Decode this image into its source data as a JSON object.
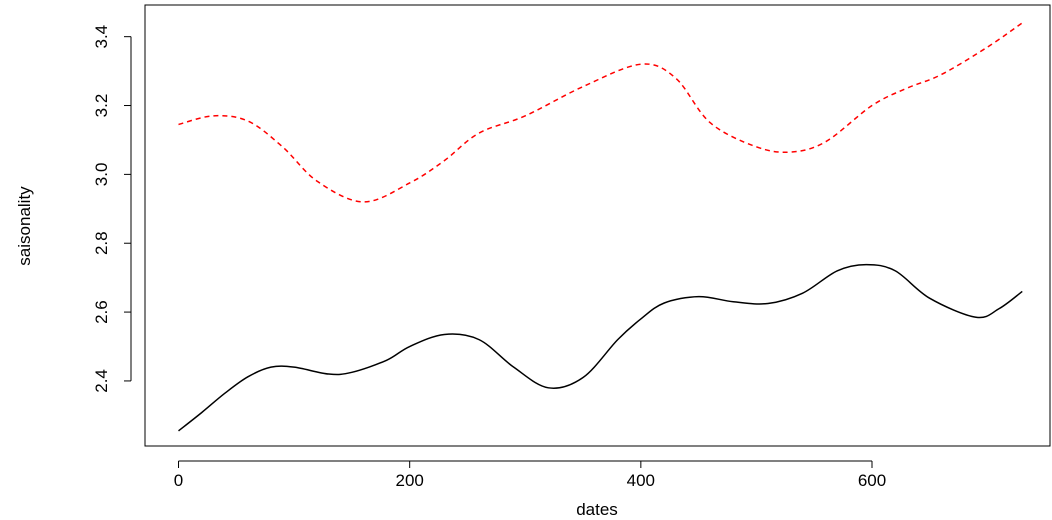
{
  "chart_data": {
    "type": "line",
    "title": "",
    "xlabel": "dates",
    "ylabel": "saisonality",
    "xlim": [
      -29,
      754
    ],
    "ylim": [
      2.211,
      3.492
    ],
    "x_ticks": [
      0,
      200,
      400,
      600
    ],
    "x_tick_labels": [
      "0",
      "200",
      "400",
      "600"
    ],
    "y_ticks": [
      2.4,
      2.6,
      2.8,
      3.0,
      3.2,
      3.4
    ],
    "y_tick_labels": [
      "2.4",
      "2.6",
      "2.8",
      "3.0",
      "3.2",
      "3.4"
    ],
    "grid": false,
    "legend": "none",
    "series": [
      {
        "color": "#000000",
        "line_style": "solid",
        "points": [
          [
            0,
            2.255
          ],
          [
            20,
            2.308
          ],
          [
            40,
            2.364
          ],
          [
            60,
            2.412
          ],
          [
            80,
            2.44
          ],
          [
            100,
            2.44
          ],
          [
            130,
            2.42
          ],
          [
            150,
            2.425
          ],
          [
            180,
            2.46
          ],
          [
            200,
            2.5
          ],
          [
            230,
            2.535
          ],
          [
            260,
            2.52
          ],
          [
            290,
            2.44
          ],
          [
            320,
            2.38
          ],
          [
            350,
            2.41
          ],
          [
            380,
            2.52
          ],
          [
            400,
            2.58
          ],
          [
            420,
            2.626
          ],
          [
            450,
            2.645
          ],
          [
            480,
            2.63
          ],
          [
            510,
            2.625
          ],
          [
            540,
            2.655
          ],
          [
            570,
            2.72
          ],
          [
            595,
            2.738
          ],
          [
            620,
            2.72
          ],
          [
            650,
            2.64
          ],
          [
            690,
            2.585
          ],
          [
            710,
            2.61
          ],
          [
            730,
            2.66
          ]
        ]
      },
      {
        "color": "#ff0000",
        "line_style": "dashed",
        "points": [
          [
            0,
            3.145
          ],
          [
            30,
            3.17
          ],
          [
            60,
            3.155
          ],
          [
            90,
            3.08
          ],
          [
            120,
            2.98
          ],
          [
            160,
            2.92
          ],
          [
            200,
            2.975
          ],
          [
            230,
            3.04
          ],
          [
            260,
            3.12
          ],
          [
            300,
            3.17
          ],
          [
            350,
            3.255
          ],
          [
            400,
            3.32
          ],
          [
            430,
            3.28
          ],
          [
            460,
            3.15
          ],
          [
            500,
            3.08
          ],
          [
            530,
            3.065
          ],
          [
            560,
            3.095
          ],
          [
            600,
            3.2
          ],
          [
            630,
            3.25
          ],
          [
            660,
            3.29
          ],
          [
            700,
            3.37
          ],
          [
            730,
            3.44
          ]
        ]
      }
    ]
  }
}
